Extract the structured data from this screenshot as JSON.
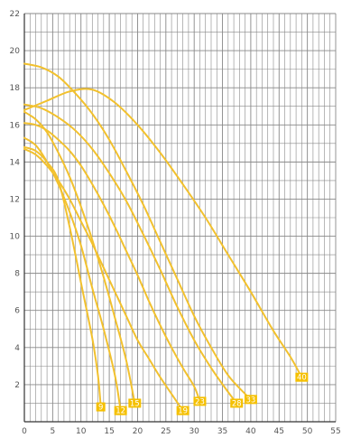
{
  "chart_data": {
    "type": "line",
    "title": "",
    "xlabel": "",
    "ylabel": "",
    "xlim": [
      0,
      55
    ],
    "ylim": [
      0,
      22
    ],
    "x_ticks": [
      "0",
      "5",
      "10",
      "15",
      "20",
      "25",
      "30",
      "35",
      "40",
      "45",
      "50",
      "55"
    ],
    "y_ticks": [
      "2",
      "4",
      "6",
      "8",
      "10",
      "12",
      "14",
      "16",
      "18",
      "20",
      "22"
    ],
    "x_minor_step": 1,
    "y_minor_step": 1,
    "grid": true,
    "colors": {
      "curve": "#f2c12e",
      "label_fill": "#f5c000",
      "label_text": "#ffffff",
      "grid": "#888888",
      "axis": "#333333",
      "tick_text": "#555555"
    },
    "series": [
      {
        "label": "9",
        "points": [
          [
            0,
            14.8
          ],
          [
            2,
            14.6
          ],
          [
            4,
            14.0
          ],
          [
            6,
            13.0
          ],
          [
            8,
            10.5
          ],
          [
            10,
            7.5
          ],
          [
            12,
            4.5
          ],
          [
            13,
            2.5
          ],
          [
            13.5,
            0.8
          ]
        ]
      },
      {
        "label": "12",
        "points": [
          [
            0,
            15.3
          ],
          [
            2,
            14.9
          ],
          [
            4,
            14.0
          ],
          [
            6,
            12.8
          ],
          [
            8,
            11.3
          ],
          [
            10,
            9.5
          ],
          [
            12,
            7.2
          ],
          [
            14,
            5.0
          ],
          [
            16,
            2.5
          ],
          [
            17,
            0.6
          ]
        ]
      },
      {
        "label": "15",
        "points": [
          [
            0,
            16.7
          ],
          [
            2,
            16.3
          ],
          [
            4,
            15.6
          ],
          [
            6,
            14.5
          ],
          [
            8,
            13.2
          ],
          [
            10,
            11.6
          ],
          [
            12,
            9.8
          ],
          [
            14,
            7.8
          ],
          [
            16,
            5.6
          ],
          [
            18,
            3.3
          ],
          [
            19.5,
            1.0
          ]
        ]
      },
      {
        "label": "19",
        "points": [
          [
            0,
            14.7
          ],
          [
            2,
            14.4
          ],
          [
            4,
            13.8
          ],
          [
            6,
            13.0
          ],
          [
            8,
            12.0
          ],
          [
            10,
            10.8
          ],
          [
            12,
            9.6
          ],
          [
            14,
            8.3
          ],
          [
            16,
            7.0
          ],
          [
            18,
            5.7
          ],
          [
            20,
            4.4
          ],
          [
            22,
            3.4
          ],
          [
            24,
            2.4
          ],
          [
            26,
            1.5
          ],
          [
            28,
            0.6
          ]
        ]
      },
      {
        "label": "23",
        "points": [
          [
            0,
            16.1
          ],
          [
            2,
            16.0
          ],
          [
            4,
            15.7
          ],
          [
            6,
            15.2
          ],
          [
            8,
            14.6
          ],
          [
            10,
            13.8
          ],
          [
            12,
            12.8
          ],
          [
            14,
            11.7
          ],
          [
            16,
            10.5
          ],
          [
            18,
            9.2
          ],
          [
            20,
            7.9
          ],
          [
            22,
            6.5
          ],
          [
            24,
            5.2
          ],
          [
            26,
            4.0
          ],
          [
            28,
            2.9
          ],
          [
            30,
            1.9
          ],
          [
            31,
            1.1
          ]
        ]
      },
      {
        "label": "28",
        "points": [
          [
            0,
            17.1
          ],
          [
            3,
            16.9
          ],
          [
            6,
            16.4
          ],
          [
            9,
            15.7
          ],
          [
            12,
            14.7
          ],
          [
            15,
            13.4
          ],
          [
            18,
            11.9
          ],
          [
            21,
            10.1
          ],
          [
            24,
            8.2
          ],
          [
            27,
            6.2
          ],
          [
            30,
            4.4
          ],
          [
            33,
            2.9
          ],
          [
            36,
            1.6
          ],
          [
            37.5,
            1.0
          ]
        ]
      },
      {
        "label": "33",
        "points": [
          [
            0,
            19.3
          ],
          [
            3,
            19.1
          ],
          [
            6,
            18.6
          ],
          [
            9,
            17.7
          ],
          [
            12,
            16.6
          ],
          [
            15,
            15.2
          ],
          [
            18,
            13.5
          ],
          [
            21,
            11.7
          ],
          [
            24,
            9.7
          ],
          [
            27,
            7.7
          ],
          [
            30,
            5.7
          ],
          [
            33,
            4.0
          ],
          [
            36,
            2.5
          ],
          [
            39,
            1.5
          ],
          [
            40,
            1.2
          ]
        ]
      },
      {
        "label": "40",
        "points": [
          [
            0,
            16.8
          ],
          [
            4,
            17.3
          ],
          [
            8,
            17.8
          ],
          [
            12,
            17.9
          ],
          [
            16,
            17.2
          ],
          [
            20,
            16.0
          ],
          [
            24,
            14.5
          ],
          [
            28,
            12.8
          ],
          [
            32,
            11.0
          ],
          [
            36,
            9.0
          ],
          [
            40,
            7.0
          ],
          [
            44,
            4.9
          ],
          [
            47,
            3.5
          ],
          [
            49,
            2.4
          ]
        ]
      }
    ]
  }
}
